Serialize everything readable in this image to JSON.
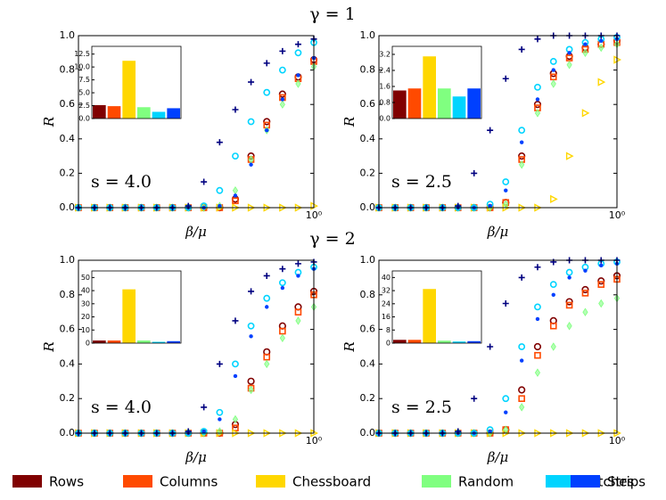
{
  "chart_data": [
    {
      "type": "scatter",
      "title": "γ = 1",
      "annotation": "s = 4.0",
      "xlabel": "β/μ",
      "ylabel": "R",
      "log_x": true,
      "x": [
        0.1,
        0.117,
        0.136,
        0.158,
        0.185,
        0.215,
        0.251,
        0.293,
        0.341,
        0.398,
        0.464,
        0.541,
        0.631,
        0.736,
        0.858,
        1.0
      ],
      "xlim": [
        0.1,
        1
      ],
      "xticks": [
        {
          "value": 1,
          "label": "10⁰"
        }
      ],
      "ylim": [
        0,
        1
      ],
      "yticks": [
        {
          "value": 0,
          "label": "0.0"
        },
        0.2,
        0.4,
        0.6,
        0.8,
        {
          "value": 1,
          "label": "1.0"
        }
      ],
      "series": [
        {
          "name": "Rows",
          "color": "#800000",
          "marker": "circle",
          "values": [
            0,
            0,
            0,
            0,
            0,
            0,
            0,
            0,
            0,
            0,
            0.05,
            0.3,
            0.5,
            0.66,
            0.76,
            0.86
          ]
        },
        {
          "name": "Columns",
          "color": "#ff4a00",
          "marker": "square",
          "values": [
            0,
            0,
            0,
            0,
            0,
            0,
            0,
            0,
            0,
            0,
            0.04,
            0.28,
            0.48,
            0.64,
            0.75,
            0.85
          ]
        },
        {
          "name": "Chessboard",
          "color": "#ffd700",
          "marker": "triangle",
          "values": [
            0,
            0,
            0,
            0,
            0,
            0,
            0,
            0,
            0,
            0,
            0,
            0,
            0,
            0,
            0,
            0.01
          ]
        },
        {
          "name": "Random",
          "color": "#80ff80",
          "marker": "diamond",
          "values": [
            0,
            0,
            0,
            0,
            0,
            0,
            0,
            0,
            0,
            0.01,
            0.1,
            0.28,
            0.45,
            0.6,
            0.72,
            0.82
          ]
        },
        {
          "name": "Patches",
          "color": "#00d4ff",
          "marker": "ring",
          "values": [
            0,
            0,
            0,
            0,
            0,
            0,
            0,
            0,
            0.01,
            0.1,
            0.3,
            0.5,
            0.67,
            0.8,
            0.9,
            0.96
          ]
        },
        {
          "name": "Strips",
          "color": "#0040ff",
          "marker": "dot",
          "values": [
            0,
            0,
            0,
            0,
            0,
            0,
            0,
            0,
            0,
            0.01,
            0.07,
            0.25,
            0.45,
            0.63,
            0.77,
            0.87
          ]
        },
        {
          "color": "#000080",
          "marker": "plus",
          "values": [
            0,
            0,
            0,
            0,
            0,
            0,
            0,
            0.01,
            0.15,
            0.38,
            0.57,
            0.73,
            0.84,
            0.91,
            0.95,
            0.98
          ]
        }
      ],
      "inset": {
        "type": "bar",
        "values": [
          2.6,
          2.4,
          11.2,
          2.2,
          1.3,
          2.0
        ],
        "ylim": [
          0,
          14
        ],
        "yticks": [
          {
            "value": 0,
            "label": "0.0"
          },
          2.5,
          {
            "value": 5,
            "label": "5.0"
          },
          7.5,
          {
            "value": 10,
            "label": "10.0"
          },
          12.5
        ]
      }
    },
    {
      "type": "scatter",
      "annotation": "s = 2.5",
      "xlabel": "β/μ",
      "ylabel": "R",
      "log_x": true,
      "x": [
        0.1,
        0.117,
        0.136,
        0.158,
        0.185,
        0.215,
        0.251,
        0.293,
        0.341,
        0.398,
        0.464,
        0.541,
        0.631,
        0.736,
        0.858,
        1.0
      ],
      "xlim": [
        0.1,
        1
      ],
      "xticks": [
        {
          "value": 1,
          "label": "10⁰"
        }
      ],
      "ylim": [
        0,
        1
      ],
      "yticks": [
        {
          "value": 0,
          "label": "0.0"
        },
        0.2,
        0.4,
        0.6,
        0.8,
        {
          "value": 1,
          "label": "1.0"
        }
      ],
      "series": [
        {
          "name": "Rows",
          "color": "#800000",
          "marker": "circle",
          "values": [
            0,
            0,
            0,
            0,
            0,
            0,
            0,
            0,
            0.03,
            0.3,
            0.6,
            0.78,
            0.88,
            0.93,
            0.95,
            0.97
          ]
        },
        {
          "name": "Columns",
          "color": "#ff4a00",
          "marker": "square",
          "values": [
            0,
            0,
            0,
            0,
            0,
            0,
            0,
            0,
            0.03,
            0.28,
            0.58,
            0.76,
            0.87,
            0.92,
            0.95,
            0.96
          ]
        },
        {
          "name": "Chessboard",
          "color": "#ffd700",
          "marker": "triangle",
          "values": [
            0,
            0,
            0,
            0,
            0,
            0,
            0,
            0,
            0,
            0,
            0,
            0.05,
            0.3,
            0.55,
            0.73,
            0.86
          ]
        },
        {
          "name": "Random",
          "color": "#80ff80",
          "marker": "diamond",
          "values": [
            0,
            0,
            0,
            0,
            0,
            0,
            0,
            0,
            0.02,
            0.25,
            0.55,
            0.72,
            0.83,
            0.9,
            0.93,
            0.95
          ]
        },
        {
          "name": "Patches",
          "color": "#00d4ff",
          "marker": "ring",
          "values": [
            0,
            0,
            0,
            0,
            0,
            0,
            0,
            0.02,
            0.15,
            0.45,
            0.7,
            0.85,
            0.92,
            0.96,
            0.98,
            0.99
          ]
        },
        {
          "name": "Strips",
          "color": "#0040ff",
          "marker": "dot",
          "values": [
            0,
            0,
            0,
            0,
            0,
            0,
            0,
            0.01,
            0.1,
            0.38,
            0.63,
            0.8,
            0.9,
            0.95,
            0.97,
            0.98
          ]
        },
        {
          "color": "#000080",
          "marker": "plus",
          "values": [
            0,
            0,
            0,
            0,
            0,
            0.01,
            0.2,
            0.45,
            0.75,
            0.92,
            0.98,
            1,
            1,
            1,
            1,
            1
          ]
        }
      ],
      "inset": {
        "type": "bar",
        "values": [
          1.4,
          1.5,
          3.1,
          1.5,
          1.1,
          1.5
        ],
        "ylim": [
          0,
          3.6
        ],
        "yticks": [
          {
            "value": 0,
            "label": "0.0"
          },
          0.8,
          1.6,
          2.4,
          3.2
        ]
      }
    },
    {
      "type": "scatter",
      "title": "γ = 2",
      "annotation": "s = 4.0",
      "xlabel": "β/μ",
      "ylabel": "R",
      "log_x": true,
      "x": [
        0.1,
        0.117,
        0.136,
        0.158,
        0.185,
        0.215,
        0.251,
        0.293,
        0.341,
        0.398,
        0.464,
        0.541,
        0.631,
        0.736,
        0.858,
        1.0
      ],
      "xlim": [
        0.1,
        1
      ],
      "xticks": [
        {
          "value": 1,
          "label": "10⁰"
        }
      ],
      "ylim": [
        0,
        1
      ],
      "yticks": [
        {
          "value": 0,
          "label": "0.0"
        },
        0.2,
        0.4,
        0.6,
        0.8,
        {
          "value": 1,
          "label": "1.0"
        }
      ],
      "series": [
        {
          "name": "Rows",
          "color": "#800000",
          "marker": "circle",
          "values": [
            0,
            0,
            0,
            0,
            0,
            0,
            0,
            0,
            0,
            0,
            0.05,
            0.3,
            0.47,
            0.62,
            0.73,
            0.82
          ]
        },
        {
          "name": "Columns",
          "color": "#ff4a00",
          "marker": "square",
          "values": [
            0,
            0,
            0,
            0,
            0,
            0,
            0,
            0,
            0,
            0,
            0.03,
            0.26,
            0.44,
            0.59,
            0.7,
            0.8
          ]
        },
        {
          "name": "Chessboard",
          "color": "#ffd700",
          "marker": "triangle",
          "values": [
            0,
            0,
            0,
            0,
            0,
            0,
            0,
            0,
            0,
            0,
            0,
            0,
            0,
            0,
            0,
            0
          ]
        },
        {
          "name": "Random",
          "color": "#80ff80",
          "marker": "diamond",
          "values": [
            0,
            0,
            0,
            0,
            0,
            0,
            0,
            0,
            0,
            0.01,
            0.08,
            0.25,
            0.4,
            0.55,
            0.65,
            0.73
          ]
        },
        {
          "name": "Patches",
          "color": "#00d4ff",
          "marker": "ring",
          "values": [
            0,
            0,
            0,
            0,
            0,
            0,
            0,
            0,
            0.01,
            0.12,
            0.4,
            0.62,
            0.78,
            0.87,
            0.93,
            0.96
          ]
        },
        {
          "name": "Strips",
          "color": "#0040ff",
          "marker": "dot",
          "values": [
            0,
            0,
            0,
            0,
            0,
            0,
            0,
            0,
            0.01,
            0.08,
            0.33,
            0.56,
            0.73,
            0.84,
            0.91,
            0.95
          ]
        },
        {
          "color": "#000080",
          "marker": "plus",
          "values": [
            0,
            0,
            0,
            0,
            0,
            0,
            0,
            0.01,
            0.15,
            0.4,
            0.65,
            0.82,
            0.91,
            0.95,
            0.98,
            0.99
          ]
        }
      ],
      "inset": {
        "type": "bar",
        "values": [
          2,
          2,
          41,
          2,
          1,
          1.5
        ],
        "ylim": [
          0,
          55
        ],
        "yticks": [
          0,
          10,
          20,
          30,
          40,
          50
        ]
      }
    },
    {
      "type": "scatter",
      "annotation": "s = 2.5",
      "xlabel": "β/μ",
      "ylabel": "R",
      "log_x": true,
      "x": [
        0.1,
        0.117,
        0.136,
        0.158,
        0.185,
        0.215,
        0.251,
        0.293,
        0.341,
        0.398,
        0.464,
        0.541,
        0.631,
        0.736,
        0.858,
        1.0
      ],
      "xlim": [
        0.1,
        1
      ],
      "xticks": [
        {
          "value": 1,
          "label": "10⁰"
        }
      ],
      "ylim": [
        0,
        1
      ],
      "yticks": [
        {
          "value": 0,
          "label": "0.0"
        },
        0.2,
        0.4,
        0.6,
        0.8,
        {
          "value": 1,
          "label": "1.0"
        }
      ],
      "series": [
        {
          "name": "Rows",
          "color": "#800000",
          "marker": "circle",
          "values": [
            0,
            0,
            0,
            0,
            0,
            0,
            0,
            0,
            0.02,
            0.25,
            0.5,
            0.65,
            0.76,
            0.83,
            0.88,
            0.91
          ]
        },
        {
          "name": "Columns",
          "color": "#ff4a00",
          "marker": "square",
          "values": [
            0,
            0,
            0,
            0,
            0,
            0,
            0,
            0,
            0.02,
            0.2,
            0.45,
            0.62,
            0.74,
            0.81,
            0.86,
            0.89
          ]
        },
        {
          "name": "Chessboard",
          "color": "#ffd700",
          "marker": "triangle",
          "values": [
            0,
            0,
            0,
            0,
            0,
            0,
            0,
            0,
            0,
            0,
            0,
            0,
            0,
            0,
            0,
            0
          ]
        },
        {
          "name": "Random",
          "color": "#80ff80",
          "marker": "diamond",
          "values": [
            0,
            0,
            0,
            0,
            0,
            0,
            0,
            0,
            0.02,
            0.15,
            0.35,
            0.5,
            0.62,
            0.7,
            0.75,
            0.78
          ]
        },
        {
          "name": "Patches",
          "color": "#00d4ff",
          "marker": "ring",
          "values": [
            0,
            0,
            0,
            0,
            0,
            0,
            0,
            0.02,
            0.2,
            0.5,
            0.73,
            0.86,
            0.93,
            0.96,
            0.98,
            0.99
          ]
        },
        {
          "name": "Strips",
          "color": "#0040ff",
          "marker": "dot",
          "values": [
            0,
            0,
            0,
            0,
            0,
            0,
            0,
            0.01,
            0.12,
            0.42,
            0.66,
            0.8,
            0.9,
            0.94,
            0.97,
            0.98
          ]
        },
        {
          "color": "#000080",
          "marker": "plus",
          "values": [
            0,
            0,
            0,
            0,
            0,
            0.01,
            0.2,
            0.5,
            0.75,
            0.9,
            0.96,
            0.99,
            1,
            1,
            1,
            1
          ]
        }
      ],
      "inset": {
        "type": "bar",
        "values": [
          2,
          2,
          33,
          1.5,
          1,
          1.2
        ],
        "ylim": [
          0,
          44
        ],
        "yticks": [
          0,
          8,
          16,
          24,
          32,
          40
        ]
      }
    }
  ]
}
